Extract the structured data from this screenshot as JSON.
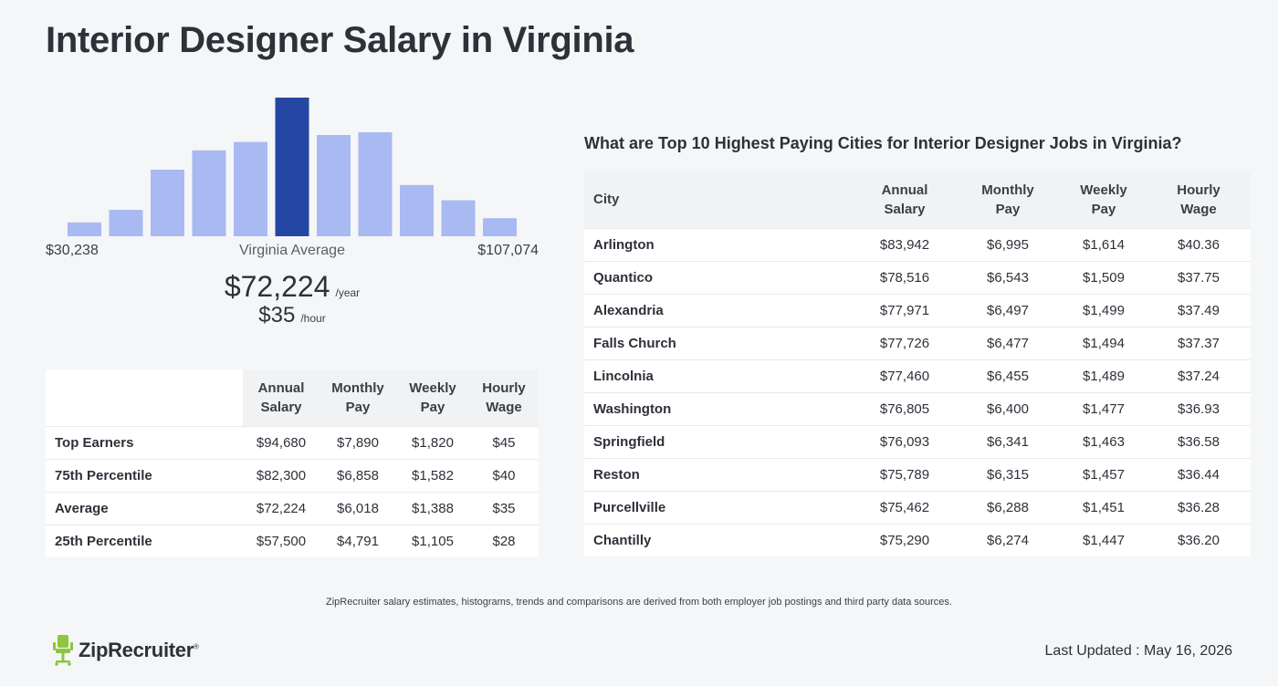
{
  "page": {
    "title": "Interior Designer Salary in Virginia"
  },
  "chart_data": {
    "type": "bar",
    "categories": [
      "1",
      "2",
      "3",
      "4",
      "5",
      "6",
      "7",
      "8",
      "9",
      "10",
      "11"
    ],
    "values": [
      10,
      19,
      48,
      62,
      68,
      100,
      73,
      75,
      37,
      26,
      13
    ],
    "highlight_index": 5,
    "range_min_label": "$30,238",
    "range_max_label": "$107,074",
    "center_label": "Virginia Average",
    "colors": {
      "bar": "#a9b9f2",
      "highlight": "#2547a3"
    }
  },
  "summary": {
    "annual_value": "$72,224",
    "annual_unit": "/year",
    "hourly_value": "$35",
    "hourly_unit": "/hour"
  },
  "percentile_table": {
    "headers": [
      "Annual Salary",
      "Monthly Pay",
      "Weekly Pay",
      "Hourly Wage"
    ],
    "rows": [
      {
        "label": "Top Earners",
        "annual": "$94,680",
        "monthly": "$7,890",
        "weekly": "$1,820",
        "hourly": "$45"
      },
      {
        "label": "75th Percentile",
        "annual": "$82,300",
        "monthly": "$6,858",
        "weekly": "$1,582",
        "hourly": "$40"
      },
      {
        "label": "Average",
        "annual": "$72,224",
        "monthly": "$6,018",
        "weekly": "$1,388",
        "hourly": "$35"
      },
      {
        "label": "25th Percentile",
        "annual": "$57,500",
        "monthly": "$4,791",
        "weekly": "$1,105",
        "hourly": "$28"
      }
    ]
  },
  "cities": {
    "heading": "What are Top 10 Highest Paying Cities for Interior Designer Jobs in Virginia?",
    "headers": [
      "City",
      "Annual Salary",
      "Monthly Pay",
      "Weekly Pay",
      "Hourly Wage"
    ],
    "rows": [
      {
        "city": "Arlington",
        "annual": "$83,942",
        "monthly": "$6,995",
        "weekly": "$1,614",
        "hourly": "$40.36"
      },
      {
        "city": "Quantico",
        "annual": "$78,516",
        "monthly": "$6,543",
        "weekly": "$1,509",
        "hourly": "$37.75"
      },
      {
        "city": "Alexandria",
        "annual": "$77,971",
        "monthly": "$6,497",
        "weekly": "$1,499",
        "hourly": "$37.49"
      },
      {
        "city": "Falls Church",
        "annual": "$77,726",
        "monthly": "$6,477",
        "weekly": "$1,494",
        "hourly": "$37.37"
      },
      {
        "city": "Lincolnia",
        "annual": "$77,460",
        "monthly": "$6,455",
        "weekly": "$1,489",
        "hourly": "$37.24"
      },
      {
        "city": "Washington",
        "annual": "$76,805",
        "monthly": "$6,400",
        "weekly": "$1,477",
        "hourly": "$36.93"
      },
      {
        "city": "Springfield",
        "annual": "$76,093",
        "monthly": "$6,341",
        "weekly": "$1,463",
        "hourly": "$36.58"
      },
      {
        "city": "Reston",
        "annual": "$75,789",
        "monthly": "$6,315",
        "weekly": "$1,457",
        "hourly": "$36.44"
      },
      {
        "city": "Purcellville",
        "annual": "$75,462",
        "monthly": "$6,288",
        "weekly": "$1,451",
        "hourly": "$36.28"
      },
      {
        "city": "Chantilly",
        "annual": "$75,290",
        "monthly": "$6,274",
        "weekly": "$1,447",
        "hourly": "$36.20"
      }
    ]
  },
  "footer": {
    "note": "ZipRecruiter salary estimates, histograms, trends and comparisons are derived from both employer job postings and third party data sources.",
    "logo_text": "ZipRecruiter",
    "logo_mark": "®",
    "last_updated": "Last Updated : May 16, 2026",
    "logo_icon": "chair-icon",
    "logo_color": "#8dc63f"
  }
}
